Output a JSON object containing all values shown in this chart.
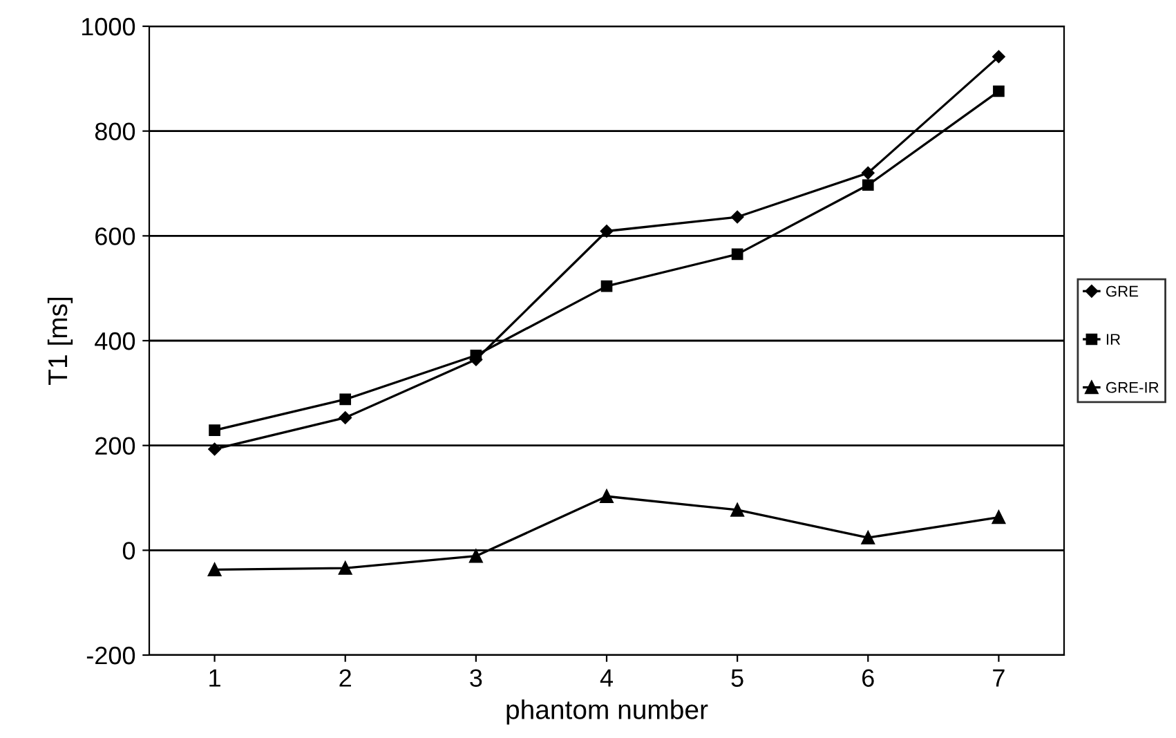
{
  "chart_data": {
    "type": "line",
    "xlabel": "phantom number",
    "ylabel": "T1 [ms]",
    "categories": [
      "1",
      "2",
      "3",
      "4",
      "5",
      "6",
      "7"
    ],
    "series": [
      {
        "name": "GRE",
        "color": "#000000",
        "marker": "diamond",
        "values": [
          193,
          253,
          364,
          609,
          636,
          720,
          942
        ]
      },
      {
        "name": "IR",
        "color": "#000000",
        "marker": "square",
        "values": [
          229,
          288,
          372,
          504,
          565,
          697,
          876
        ]
      },
      {
        "name": "GRE-IR",
        "color": "#000000",
        "marker": "triangle",
        "values": [
          -37,
          -34,
          -11,
          103,
          77,
          24,
          63
        ]
      }
    ],
    "ylim": [
      -200,
      1000
    ],
    "yticks": [
      -200,
      0,
      200,
      400,
      600,
      800,
      1000
    ],
    "grid": "y",
    "legend": "right",
    "line_style": "solid"
  }
}
